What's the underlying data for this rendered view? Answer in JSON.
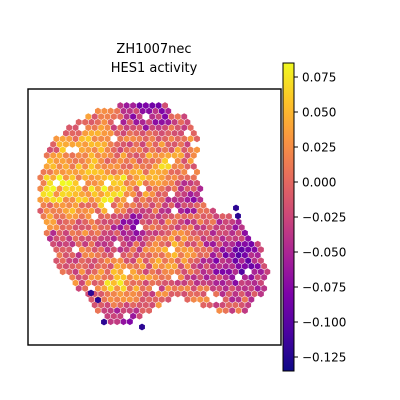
{
  "chart_data": {
    "type": "heatmap",
    "title_line1": "ZH1007nec",
    "title_line2": "HES1 activity",
    "colormap": "plasma",
    "grid": false,
    "colorbar": {
      "vmin": -0.135,
      "vmax": 0.085,
      "ticks": [
        0.075,
        0.05,
        0.025,
        0.0,
        -0.025,
        -0.05,
        -0.075,
        -0.1,
        -0.125
      ],
      "tick_labels": [
        "0.075",
        "0.050",
        "0.025",
        "0.000",
        "−0.025",
        "−0.050",
        "−0.075",
        "−0.100",
        "−0.125"
      ]
    },
    "description": "Hexagonal spatial spot map of HES1 activity over an irregular tissue section; values range roughly from -0.13 to 0.08 with higher (yellow/orange) values concentrated on the left and center, lower (purple/blue) values on the right and bottom edges."
  }
}
